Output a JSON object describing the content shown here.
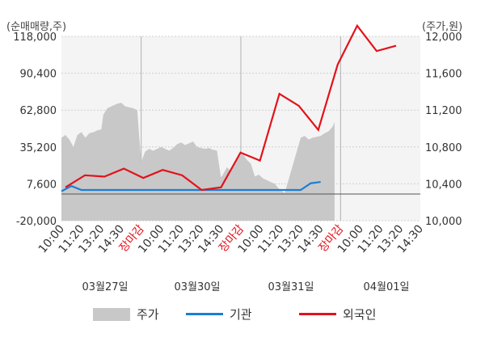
{
  "units": {
    "left": "(순매매량,주)",
    "right": "(주가,원)"
  },
  "legend": {
    "price": "주가",
    "institution": "기관",
    "foreign": "외국인"
  },
  "colors": {
    "price": "#c8c8c8",
    "institution": "#1a7fd4",
    "foreign": "#e3121b",
    "grid": "#cfcfcf",
    "closeLabel": "#e3121b",
    "baseline": "#555555"
  },
  "chart_data": {
    "type": "line",
    "x_tick_labels": [
      "10:00",
      "11:20",
      "13:20",
      "14:30",
      "장마감",
      "10:00",
      "11:20",
      "13:20",
      "14:30",
      "장마감",
      "10:00",
      "11:20",
      "13:20",
      "14:30",
      "장마감",
      "10:00",
      "11:20",
      "13:20",
      "14:30"
    ],
    "date_labels": [
      "03월27일",
      "03월30일",
      "03월31일",
      "04월01일"
    ],
    "y_left": {
      "ticks": [
        118000,
        90400,
        62800,
        35200,
        7600,
        -20000
      ],
      "tick_labels": [
        "118,000",
        "90,400",
        "62,800",
        "35,200",
        "7,600",
        "-20,000"
      ],
      "ylim": [
        -20000,
        118000
      ]
    },
    "y_right": {
      "ticks": [
        12000,
        11600,
        11200,
        10800,
        10400,
        10000
      ],
      "tick_labels": [
        "12,000",
        "11,600",
        "11,200",
        "10,800",
        "10,400",
        "10,000"
      ],
      "ylim": [
        10000,
        12000
      ]
    },
    "price_series": {
      "name": "주가",
      "points": [
        [
          0,
          10900
        ],
        [
          0.2,
          10930
        ],
        [
          0.4,
          10880
        ],
        [
          0.6,
          10800
        ],
        [
          0.8,
          10930
        ],
        [
          1,
          10960
        ],
        [
          1.2,
          10900
        ],
        [
          1.4,
          10950
        ],
        [
          1.6,
          10960
        ],
        [
          1.8,
          10980
        ],
        [
          2,
          10990
        ],
        [
          2.1,
          11150
        ],
        [
          2.3,
          11220
        ],
        [
          2.6,
          11250
        ],
        [
          2.8,
          11270
        ],
        [
          3,
          11280
        ],
        [
          3.2,
          11240
        ],
        [
          3.4,
          11230
        ],
        [
          3.6,
          11220
        ],
        [
          3.8,
          11200
        ],
        [
          4,
          10640
        ],
        [
          4.2,
          10750
        ],
        [
          4.4,
          10780
        ],
        [
          4.6,
          10760
        ],
        [
          4.8,
          10780
        ],
        [
          5,
          10800
        ],
        [
          5.2,
          10780
        ],
        [
          5.4,
          10760
        ],
        [
          5.6,
          10790
        ],
        [
          5.8,
          10830
        ],
        [
          6,
          10850
        ],
        [
          6.2,
          10820
        ],
        [
          6.4,
          10840
        ],
        [
          6.6,
          10860
        ],
        [
          6.8,
          10800
        ],
        [
          7,
          10790
        ],
        [
          7.2,
          10780
        ],
        [
          7.4,
          10790
        ],
        [
          7.6,
          10770
        ],
        [
          7.8,
          10760
        ],
        [
          8,
          10470
        ],
        [
          8.1,
          10500
        ],
        [
          8.3,
          10580
        ],
        [
          8.5,
          10540
        ],
        [
          8.7,
          10650
        ],
        [
          8.9,
          10700
        ],
        [
          9.1,
          10720
        ],
        [
          9.3,
          10660
        ],
        [
          9.5,
          10620
        ],
        [
          9.7,
          10480
        ],
        [
          9.9,
          10500
        ],
        [
          10.1,
          10460
        ],
        [
          10.3,
          10440
        ],
        [
          10.5,
          10420
        ],
        [
          10.7,
          10400
        ],
        [
          10.9,
          10350
        ],
        [
          11,
          10330
        ],
        [
          11.2,
          10300
        ],
        [
          12,
          10900
        ],
        [
          12.2,
          10920
        ],
        [
          12.4,
          10880
        ],
        [
          12.6,
          10900
        ],
        [
          12.8,
          10910
        ],
        [
          13,
          10920
        ],
        [
          13.2,
          10950
        ],
        [
          13.4,
          10970
        ],
        [
          13.6,
          11020
        ],
        [
          13.7,
          11070
        ]
      ]
    },
    "institution_series": {
      "name": "기관",
      "points": [
        [
          0,
          22
        ],
        [
          0.5,
          26
        ],
        [
          1,
          23
        ],
        [
          1.5,
          23
        ],
        [
          2,
          23
        ],
        [
          2.5,
          23
        ],
        [
          3,
          23
        ],
        [
          3.5,
          23
        ],
        [
          4,
          23
        ],
        [
          4.5,
          23
        ],
        [
          5,
          23
        ],
        [
          5.5,
          23
        ],
        [
          6,
          23
        ],
        [
          6.5,
          23
        ],
        [
          7,
          23
        ],
        [
          7.5,
          23
        ],
        [
          8,
          23
        ],
        [
          8.5,
          23
        ],
        [
          9,
          23
        ],
        [
          9.5,
          23
        ],
        [
          10,
          23
        ],
        [
          10.5,
          23
        ],
        [
          11,
          23
        ],
        [
          11.5,
          23
        ],
        [
          12,
          23
        ],
        [
          12.5,
          28
        ],
        [
          13,
          29
        ]
      ]
    },
    "foreign_series": {
      "name": "외국인",
      "points": [
        [
          0,
          5000
        ],
        [
          1,
          14000
        ],
        [
          2,
          13000
        ],
        [
          3,
          19000
        ],
        [
          4,
          12000
        ],
        [
          5,
          18000
        ],
        [
          6,
          14000
        ],
        [
          7,
          3000
        ],
        [
          8,
          5000
        ],
        [
          9,
          31000
        ],
        [
          10,
          25000
        ],
        [
          11,
          75000
        ],
        [
          12,
          66000
        ],
        [
          13,
          48000
        ],
        [
          14,
          97000
        ],
        [
          15,
          126000
        ],
        [
          16,
          107000
        ],
        [
          17,
          111000
        ]
      ]
    }
  }
}
